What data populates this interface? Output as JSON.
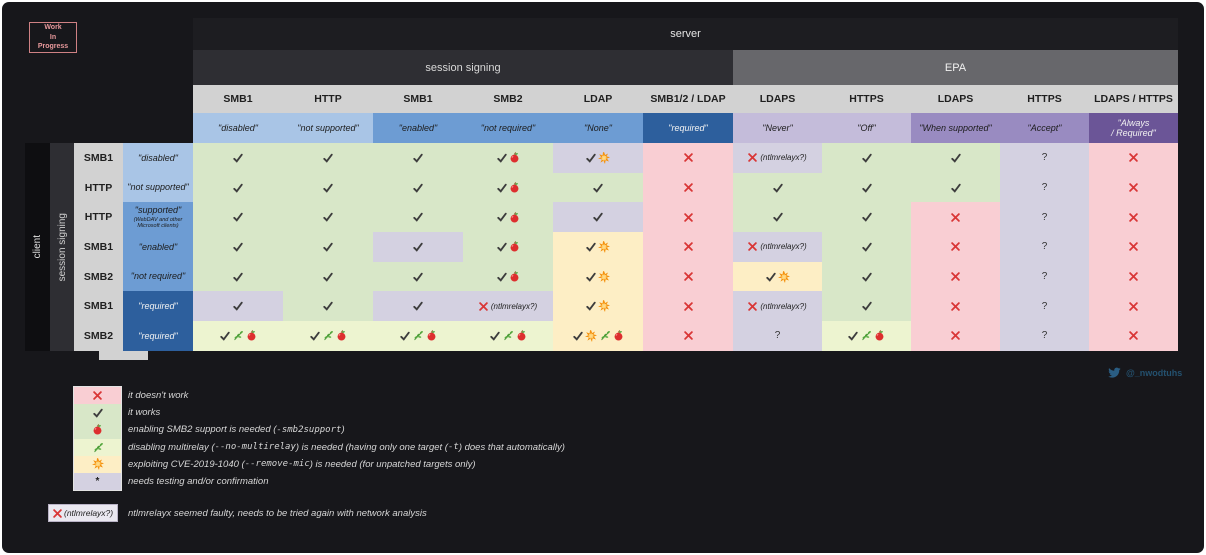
{
  "wip_badge": {
    "lines": [
      "Work",
      "In",
      "Progress"
    ]
  },
  "table": {
    "server_label": "server",
    "session_signing_group_label": "session signing",
    "epa_group_label": "EPA",
    "client_label": "client",
    "client_session_signing_label": "session signing",
    "columns": [
      {
        "protocol": "SMB1",
        "value": "\"disabled\"",
        "shade": "lb"
      },
      {
        "protocol": "HTTP",
        "value": "\"not supported\"",
        "shade": "lb"
      },
      {
        "protocol": "SMB1",
        "value": "\"enabled\"",
        "shade": "mb"
      },
      {
        "protocol": "SMB2",
        "value": "\"not required\"",
        "shade": "mb"
      },
      {
        "protocol": "LDAP",
        "value": "\"None\"",
        "shade": "mb"
      },
      {
        "protocol": "SMB1/2 / LDAP",
        "value": "\"required\"",
        "shade": "db"
      },
      {
        "protocol": "LDAPS",
        "value": "\"Never\"",
        "shade": "lp"
      },
      {
        "protocol": "HTTPS",
        "value": "\"Off\"",
        "shade": "lp"
      },
      {
        "protocol": "LDAPS",
        "value": "\"When supported\"",
        "shade": "mp"
      },
      {
        "protocol": "HTTPS",
        "value": "\"Accept\"",
        "shade": "mp"
      },
      {
        "protocol": "LDAPS / HTTPS",
        "value": "\"Always\n/ Required\"",
        "shade": "dp"
      }
    ],
    "rows": [
      {
        "protocol": "SMB1",
        "value": "\"disabled\"",
        "shade": "lb",
        "cells": [
          {
            "bg": "g",
            "sym": [
              "check"
            ]
          },
          {
            "bg": "g",
            "sym": [
              "check"
            ]
          },
          {
            "bg": "g",
            "sym": [
              "check"
            ]
          },
          {
            "bg": "g",
            "sym": [
              "check",
              "apple"
            ]
          },
          {
            "bg": "l",
            "sym": [
              "check",
              "collision"
            ]
          },
          {
            "bg": "p",
            "sym": [
              "cross"
            ]
          },
          {
            "bg": "l",
            "sym": [
              "cross"
            ],
            "text": "(ntlmrelayx?)"
          },
          {
            "bg": "g",
            "sym": [
              "check"
            ]
          },
          {
            "bg": "g",
            "sym": [
              "check"
            ]
          },
          {
            "bg": "l",
            "sym": [
              "question"
            ]
          },
          {
            "bg": "p",
            "sym": [
              "cross"
            ]
          }
        ]
      },
      {
        "protocol": "HTTP",
        "value": "\"not supported\"",
        "shade": "lb",
        "cells": [
          {
            "bg": "g",
            "sym": [
              "check"
            ]
          },
          {
            "bg": "g",
            "sym": [
              "check"
            ]
          },
          {
            "bg": "g",
            "sym": [
              "check"
            ]
          },
          {
            "bg": "g",
            "sym": [
              "check",
              "apple"
            ]
          },
          {
            "bg": "g",
            "sym": [
              "check"
            ]
          },
          {
            "bg": "p",
            "sym": [
              "cross"
            ]
          },
          {
            "bg": "g",
            "sym": [
              "check"
            ]
          },
          {
            "bg": "g",
            "sym": [
              "check"
            ]
          },
          {
            "bg": "g",
            "sym": [
              "check"
            ]
          },
          {
            "bg": "l",
            "sym": [
              "question"
            ]
          },
          {
            "bg": "p",
            "sym": [
              "cross"
            ]
          }
        ]
      },
      {
        "protocol": "HTTP",
        "value": "\"supported\"",
        "value_sub": "(WebDAV and other\nMicrosoft clients)",
        "shade": "mb",
        "cells": [
          {
            "bg": "g",
            "sym": [
              "check"
            ]
          },
          {
            "bg": "g",
            "sym": [
              "check"
            ]
          },
          {
            "bg": "g",
            "sym": [
              "check"
            ]
          },
          {
            "bg": "g",
            "sym": [
              "check",
              "apple"
            ]
          },
          {
            "bg": "l",
            "sym": [
              "check"
            ]
          },
          {
            "bg": "p",
            "sym": [
              "cross"
            ]
          },
          {
            "bg": "g",
            "sym": [
              "check"
            ]
          },
          {
            "bg": "g",
            "sym": [
              "check"
            ]
          },
          {
            "bg": "p",
            "sym": [
              "cross"
            ]
          },
          {
            "bg": "l",
            "sym": [
              "question"
            ]
          },
          {
            "bg": "p",
            "sym": [
              "cross"
            ]
          }
        ]
      },
      {
        "protocol": "SMB1",
        "value": "\"enabled\"",
        "shade": "mb",
        "cells": [
          {
            "bg": "g",
            "sym": [
              "check"
            ]
          },
          {
            "bg": "g",
            "sym": [
              "check"
            ]
          },
          {
            "bg": "l",
            "sym": [
              "check"
            ]
          },
          {
            "bg": "g",
            "sym": [
              "check",
              "apple"
            ]
          },
          {
            "bg": "y",
            "sym": [
              "check",
              "collision"
            ]
          },
          {
            "bg": "p",
            "sym": [
              "cross"
            ]
          },
          {
            "bg": "l",
            "sym": [
              "cross"
            ],
            "text": "(ntlmrelayx?)"
          },
          {
            "bg": "g",
            "sym": [
              "check"
            ]
          },
          {
            "bg": "p",
            "sym": [
              "cross"
            ]
          },
          {
            "bg": "l",
            "sym": [
              "question"
            ]
          },
          {
            "bg": "p",
            "sym": [
              "cross"
            ]
          }
        ]
      },
      {
        "protocol": "SMB2",
        "value": "\"not required\"",
        "shade": "mb",
        "cells": [
          {
            "bg": "g",
            "sym": [
              "check"
            ]
          },
          {
            "bg": "g",
            "sym": [
              "check"
            ]
          },
          {
            "bg": "g",
            "sym": [
              "check"
            ]
          },
          {
            "bg": "g",
            "sym": [
              "check",
              "apple"
            ]
          },
          {
            "bg": "y",
            "sym": [
              "check",
              "collision"
            ]
          },
          {
            "bg": "p",
            "sym": [
              "cross"
            ]
          },
          {
            "bg": "y",
            "sym": [
              "check",
              "collision"
            ]
          },
          {
            "bg": "g",
            "sym": [
              "check"
            ]
          },
          {
            "bg": "p",
            "sym": [
              "cross"
            ]
          },
          {
            "bg": "l",
            "sym": [
              "question"
            ]
          },
          {
            "bg": "p",
            "sym": [
              "cross"
            ]
          }
        ]
      },
      {
        "protocol": "SMB1",
        "value": "\"required\"",
        "shade": "db",
        "cells": [
          {
            "bg": "l",
            "sym": [
              "check"
            ]
          },
          {
            "bg": "g",
            "sym": [
              "check"
            ]
          },
          {
            "bg": "l",
            "sym": [
              "check"
            ]
          },
          {
            "bg": "l",
            "sym": [
              "cross"
            ],
            "text": "(ntlmrelayx?)"
          },
          {
            "bg": "y",
            "sym": [
              "check",
              "collision"
            ]
          },
          {
            "bg": "p",
            "sym": [
              "cross"
            ]
          },
          {
            "bg": "l",
            "sym": [
              "cross"
            ],
            "text": "(ntlmrelayx?)"
          },
          {
            "bg": "g",
            "sym": [
              "check"
            ]
          },
          {
            "bg": "p",
            "sym": [
              "cross"
            ]
          },
          {
            "bg": "l",
            "sym": [
              "question"
            ]
          },
          {
            "bg": "p",
            "sym": [
              "cross"
            ]
          }
        ]
      },
      {
        "protocol": "SMB2",
        "value": "\"required\"",
        "shade": "db",
        "cells": [
          {
            "bg": "yg",
            "sym": [
              "check",
              "herb",
              "apple"
            ]
          },
          {
            "bg": "yg",
            "sym": [
              "check",
              "herb",
              "apple"
            ]
          },
          {
            "bg": "yg",
            "sym": [
              "check",
              "herb",
              "apple"
            ]
          },
          {
            "bg": "yg",
            "sym": [
              "check",
              "herb",
              "apple"
            ]
          },
          {
            "bg": "y",
            "sym": [
              "check",
              "collision",
              "herb",
              "apple"
            ]
          },
          {
            "bg": "p",
            "sym": [
              "cross"
            ]
          },
          {
            "bg": "l",
            "sym": [
              "question"
            ]
          },
          {
            "bg": "yg",
            "sym": [
              "check",
              "herb",
              "apple"
            ]
          },
          {
            "bg": "p",
            "sym": [
              "cross"
            ]
          },
          {
            "bg": "l",
            "sym": [
              "question"
            ]
          },
          {
            "bg": "p",
            "sym": [
              "cross"
            ]
          }
        ]
      }
    ]
  },
  "legend": [
    {
      "bg": "p",
      "symbol": "cross",
      "segments": [
        {
          "t": "it doesn't work"
        }
      ]
    },
    {
      "bg": "g",
      "symbol": "check",
      "segments": [
        {
          "t": "it works"
        }
      ]
    },
    {
      "bg": "g",
      "symbol": "apple",
      "segments": [
        {
          "t": "enabling SMB2 support is needed ("
        },
        {
          "c": "-smb2support"
        },
        {
          "t": ")"
        }
      ]
    },
    {
      "bg": "yg",
      "symbol": "herb",
      "segments": [
        {
          "t": "disabling multirelay ("
        },
        {
          "c": "--no-multirelay"
        },
        {
          "t": ") is needed (having only one target ("
        },
        {
          "c": "-t"
        },
        {
          "t": ") does that automatically)"
        }
      ]
    },
    {
      "bg": "y",
      "symbol": "collision",
      "segments": [
        {
          "t": "exploiting CVE-2019-1040 ("
        },
        {
          "c": "--remove-mic"
        },
        {
          "t": ") is needed (for unpatched targets only)"
        }
      ]
    },
    {
      "bg": "l",
      "symbol": "asterisk",
      "segments": [
        {
          "t": "needs testing and/or confirmation"
        }
      ]
    }
  ],
  "footnote": {
    "symbol": "cross",
    "label": "(ntlmrelayx?)",
    "text": "ntlmrelayx seemed faulty, needs to be tried again with network analysis"
  },
  "twitter": {
    "handle": "@_nwodtuhs"
  },
  "palette": {
    "works_green": "#d8e7c8",
    "fails_pink": "#f9ced3",
    "testing_lavender": "#d4d1e1",
    "cve_yellow": "#fdeec5",
    "multirelay_palegreen": "#edf4d0",
    "client_light_blue": "#a9c5e6",
    "client_medium_blue": "#6d9cd3",
    "client_dark_blue": "#2d5f9d",
    "epa_light_purple": "#c4bcda",
    "epa_medium_purple": "#998bc1",
    "epa_dark_purple": "#6b5597"
  }
}
